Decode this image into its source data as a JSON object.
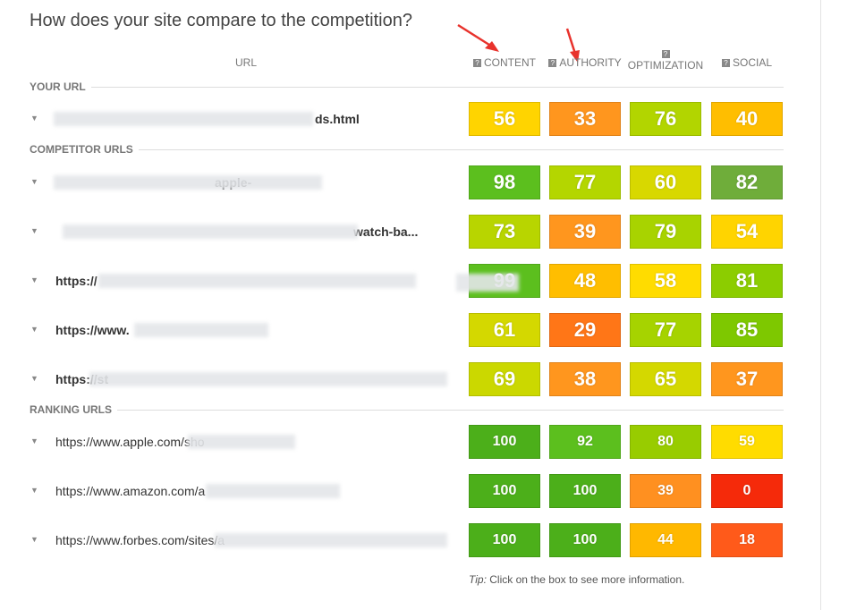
{
  "title": "How does your site compare to the competition?",
  "columns": [
    "URL",
    "CONTENT",
    "AUTHORITY",
    "OPTIMIZATION",
    "SOCIAL"
  ],
  "sections": [
    {
      "label": "YOUR URL",
      "rows": [
        {
          "url": "ds.html",
          "scores": [
            56,
            33,
            76,
            40
          ],
          "colors": [
            "#ffd400",
            "#ff961e",
            "#b2d500",
            "#ffbe00"
          ]
        }
      ]
    },
    {
      "label": "COMPETITOR URLS",
      "rows": [
        {
          "url": "apple-",
          "scores": [
            98,
            77,
            60,
            82
          ],
          "colors": [
            "#5cbf1e",
            "#b4d600",
            "#d8d800",
            "#6fad3a"
          ]
        },
        {
          "url": "watch-ba...",
          "scores": [
            73,
            39,
            79,
            54
          ],
          "colors": [
            "#b8d500",
            "#ff961e",
            "#a8d300",
            "#ffd400"
          ]
        },
        {
          "url": "https://",
          "scores": [
            99,
            48,
            58,
            81
          ],
          "colors": [
            "#5cbf1e",
            "#ffbe00",
            "#ffdc00",
            "#8ccd00"
          ]
        },
        {
          "url": "https://www.",
          "scores": [
            61,
            29,
            77,
            85
          ],
          "colors": [
            "#d4d800",
            "#ff7617",
            "#a6d300",
            "#7ec800"
          ]
        },
        {
          "url": "https://st",
          "scores": [
            69,
            38,
            65,
            37
          ],
          "colors": [
            "#cbd800",
            "#ff961e",
            "#d4d800",
            "#ff961e"
          ]
        }
      ]
    },
    {
      "label": "RANKING URLS",
      "rows": [
        {
          "url": "https://www.apple.com/sho",
          "scores": [
            100,
            92,
            80,
            59
          ],
          "colors": [
            "#4caf1a",
            "#5cbf1e",
            "#98cc00",
            "#ffdc00"
          ]
        },
        {
          "url": "https://www.amazon.com/a",
          "scores": [
            100,
            100,
            39,
            0
          ],
          "colors": [
            "#4caf1a",
            "#4caf1a",
            "#ff9020",
            "#f52a0a"
          ]
        },
        {
          "url": "https://www.forbes.com/sites/a",
          "scores": [
            100,
            100,
            44,
            18
          ],
          "colors": [
            "#4caf1a",
            "#4caf1a",
            "#ffb800",
            "#ff5a1a"
          ]
        }
      ]
    }
  ],
  "tip": {
    "label": "Tip:",
    "text": "Click on the box to see more information."
  }
}
